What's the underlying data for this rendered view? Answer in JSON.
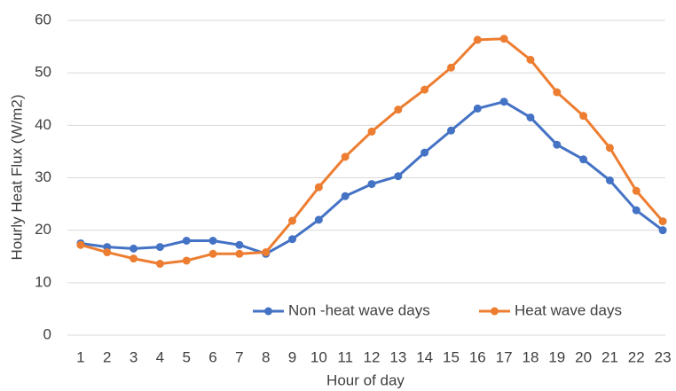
{
  "chart_data": {
    "type": "line",
    "x_label": "Hour of day",
    "y_label": "Hourly Heat Flux (W/m2)",
    "categories": [
      "1",
      "2",
      "3",
      "4",
      "5",
      "6",
      "7",
      "8",
      "9",
      "10",
      "11",
      "12",
      "13",
      "14",
      "15",
      "16",
      "17",
      "18",
      "19",
      "20",
      "21",
      "22",
      "23"
    ],
    "series": [
      {
        "name": "Non -heat wave days",
        "color": "#4472c4",
        "values": [
          17.5,
          16.8,
          16.5,
          16.8,
          18.0,
          18.0,
          17.2,
          15.5,
          18.3,
          22.0,
          26.5,
          28.8,
          30.3,
          34.8,
          39.0,
          43.2,
          44.5,
          41.5,
          36.3,
          33.5,
          29.5,
          23.8,
          20.0
        ]
      },
      {
        "name": "Heat wave days",
        "color": "#ed7d31",
        "values": [
          17.2,
          15.8,
          14.6,
          13.6,
          14.2,
          15.5,
          15.5,
          15.8,
          21.8,
          28.2,
          34.0,
          38.8,
          43.0,
          46.8,
          51.0,
          56.3,
          56.5,
          52.5,
          46.3,
          41.8,
          35.7,
          27.5,
          21.7
        ]
      }
    ],
    "ylim": [
      0,
      60
    ],
    "yticks": [
      0,
      10,
      20,
      30,
      40,
      50,
      60
    ],
    "grid": true,
    "legend": "bottom-right"
  }
}
